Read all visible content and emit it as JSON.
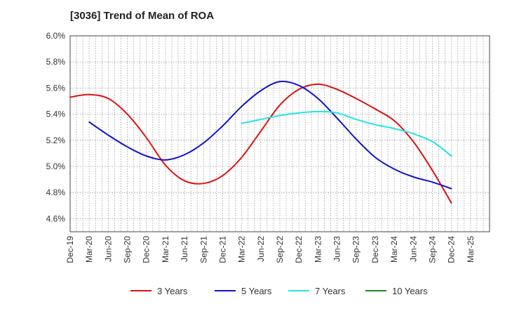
{
  "chart_data": {
    "type": "line",
    "title": "[3036]  Trend of Mean of ROA",
    "xlabel": "",
    "ylabel": "",
    "ylim": [
      4.5,
      6.0
    ],
    "y_ticks": [
      4.6,
      4.8,
      5.0,
      5.2,
      5.4,
      5.6,
      5.8,
      6.0
    ],
    "y_tick_labels": [
      "4.6%",
      "4.8%",
      "5.0%",
      "5.2%",
      "5.4%",
      "5.6%",
      "5.8%",
      "6.0%"
    ],
    "x_tick_labels": [
      "Dec-19",
      "Mar-20",
      "Jun-20",
      "Sep-20",
      "Dec-20",
      "Mar-21",
      "Jun-21",
      "Sep-21",
      "Dec-21",
      "Mar-22",
      "Jun-22",
      "Sep-22",
      "Dec-22",
      "Mar-23",
      "Jun-23",
      "Sep-23",
      "Dec-23",
      "Mar-24",
      "Jun-24",
      "Sep-24",
      "Dec-24",
      "Mar-25"
    ],
    "grid": true,
    "legend_position": "bottom",
    "series": [
      {
        "name": "3 Years",
        "color": "#dd1111",
        "start_index": 0,
        "values": [
          5.53,
          5.55,
          5.52,
          5.4,
          5.22,
          5.01,
          4.89,
          4.87,
          4.93,
          5.07,
          5.27,
          5.47,
          5.59,
          5.63,
          5.59,
          5.52,
          5.44,
          5.35,
          5.19,
          4.97,
          4.72
        ]
      },
      {
        "name": "5 Years",
        "color": "#1111cc",
        "start_index": 1,
        "values": [
          5.34,
          5.24,
          5.15,
          5.08,
          5.05,
          5.09,
          5.18,
          5.31,
          5.46,
          5.58,
          5.65,
          5.62,
          5.52,
          5.37,
          5.21,
          5.07,
          4.98,
          4.92,
          4.88,
          4.83
        ]
      },
      {
        "name": "7 Years",
        "color": "#22e5e5",
        "start_index": 9,
        "values": [
          5.33,
          5.36,
          5.39,
          5.41,
          5.42,
          5.41,
          5.36,
          5.32,
          5.29,
          5.25,
          5.19,
          5.08
        ]
      },
      {
        "name": "10 Years",
        "color": "#228822",
        "start_index": 0,
        "values": []
      }
    ]
  }
}
